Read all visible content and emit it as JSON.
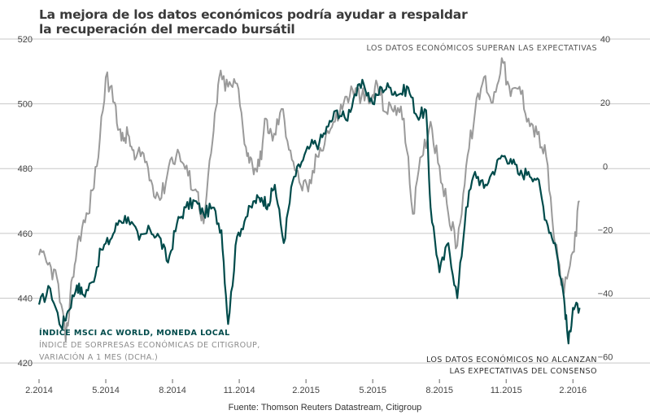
{
  "title_line1": "La mejora de los datos económicos podría ayudar a respaldar",
  "title_line2": "la recuperación del mercado bursátil",
  "source": "Fuente: Thomson Reuters Datastream, Citigroup",
  "colors": {
    "msci": "#004b4b",
    "citi": "#9a9a9a",
    "grid": "#c8c8c8",
    "text": "#444444"
  },
  "chart_data": {
    "type": "line",
    "left_axis": {
      "range": [
        415,
        520
      ],
      "ticks": [
        420,
        440,
        460,
        480,
        500,
        520
      ]
    },
    "right_axis": {
      "range": [
        -67,
        40
      ],
      "ticks": [
        "-60",
        "-40",
        "-20",
        "0",
        "20",
        "40"
      ]
    },
    "x_axis": {
      "range": [
        0,
        25.6
      ],
      "tick_positions": [
        0,
        3,
        6,
        9,
        12,
        15,
        18,
        21,
        24
      ],
      "tick_labels": [
        "2.2014",
        "5.2014",
        "8.2014",
        "11.2014",
        "2.2015",
        "5.2015",
        "8.2015",
        "11.2015",
        "2.2016"
      ]
    },
    "grid": "horizontal",
    "annotations": {
      "top": "LOS DATOS ECONÓMICOS SUPERAN LAS EXPECTATIVAS",
      "bottom_1": "LOS DATOS ECONÓMICOS NO ALCANZAN",
      "bottom_2": "LAS EXPECTATIVAS DEL CONSENSO",
      "legend_1": "ÍNDICE MSCI AC WORLD, MONEDA LOCAL",
      "legend_2": "ÍNDICE DE SORPRESAS ECONÓMICAS DE CITIGROUP,",
      "legend_3": "VARIACIÓN A 1 MES (DCHA.)"
    },
    "series": [
      {
        "name": "ÍNDICE MSCI AC WORLD, MONEDA LOCAL",
        "axis": "left",
        "x": [
          0,
          0.5,
          1,
          1.3,
          1.7,
          2,
          2.4,
          2.8,
          3.2,
          3.6,
          4,
          4.5,
          5,
          5.4,
          5.8,
          6.2,
          6.6,
          7,
          7.4,
          7.8,
          8.2,
          8.5,
          8.9,
          9.3,
          9.7,
          10,
          10.3,
          10.6,
          11,
          11.4,
          11.8,
          12.2,
          12.6,
          13,
          13.4,
          13.8,
          14.2,
          14.6,
          15,
          15.4,
          15.8,
          16.2,
          16.6,
          17,
          17.4,
          17.6,
          18,
          18.4,
          18.8,
          19.2,
          19.6,
          20,
          20.4,
          20.8,
          21.2,
          21.6,
          22,
          22.4,
          22.8,
          23.2,
          23.6,
          23.8,
          24,
          24.3
        ],
        "y": [
          438,
          443,
          431,
          436,
          444,
          441,
          445,
          455,
          458,
          464,
          465,
          458,
          461,
          459,
          451,
          463,
          468,
          470,
          466,
          468,
          461,
          432,
          459,
          465,
          470,
          471,
          469,
          475,
          457,
          476,
          482,
          487,
          488,
          493,
          498,
          495,
          503,
          506,
          500,
          505,
          505,
          503,
          505,
          496,
          498,
          468,
          448,
          457,
          440,
          468,
          479,
          474,
          479,
          484,
          483,
          478,
          479,
          477,
          464,
          457,
          440,
          426,
          437,
          437
        ]
      },
      {
        "name": "ÍNDICE DE SORPRESAS ECONÓMICAS DE CITIGROUP, VARIACIÓN A 1 MES (DCHA.)",
        "axis": "right",
        "x": [
          0,
          0.4,
          0.8,
          1.2,
          1.5,
          1.8,
          2.2,
          2.6,
          3,
          3.4,
          3.7,
          4,
          4.3,
          4.7,
          5.1,
          5.5,
          5.9,
          6.3,
          6.7,
          7.1,
          7.4,
          7.8,
          8.1,
          8.5,
          8.9,
          9.3,
          9.6,
          9.9,
          10.2,
          10.5,
          10.9,
          11.3,
          11.7,
          12.1,
          12.5,
          12.9,
          13.3,
          13.7,
          14.1,
          14.5,
          14.9,
          15.2,
          15.6,
          16,
          16.4,
          16.8,
          17.2,
          17.6,
          18,
          18.4,
          18.8,
          19.2,
          19.6,
          20,
          20.4,
          20.8,
          21.2,
          21.6,
          22,
          22.4,
          22.8,
          23.2,
          23.6,
          24,
          24.3
        ],
        "y": [
          -28,
          -31,
          -35,
          -55,
          -35,
          -22,
          -15,
          0,
          28,
          20,
          8,
          10,
          2,
          4,
          -6,
          -10,
          2,
          4,
          -3,
          -8,
          -18,
          8,
          28,
          25,
          26,
          6,
          0,
          0,
          15,
          8,
          18,
          5,
          -5,
          -8,
          3,
          10,
          14,
          20,
          24,
          22,
          20,
          26,
          17,
          19,
          15,
          -15,
          3,
          14,
          0,
          -15,
          -25,
          0,
          17,
          28,
          20,
          34,
          22,
          25,
          15,
          10,
          3,
          -25,
          -40,
          -27,
          -11
        ]
      }
    ]
  }
}
